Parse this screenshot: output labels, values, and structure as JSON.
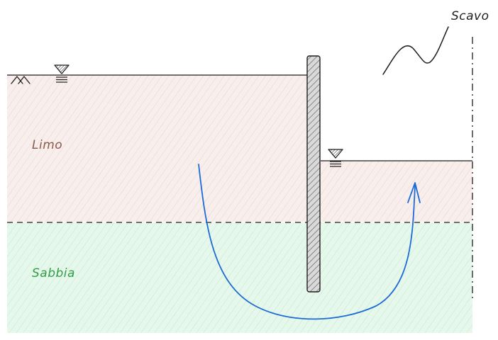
{
  "labels": {
    "upper_layer": "Limo",
    "lower_layer": "Sabbia",
    "excavation": "Scavo"
  },
  "colors": {
    "upper_layer_fill": "#f8eeec",
    "upper_layer_hatch": "#e6d3cf",
    "upper_layer_text": "#8a5a4c",
    "lower_layer_fill": "#e6f8ec",
    "lower_layer_hatch": "#bfe8cc",
    "lower_layer_text": "#2f9e44",
    "flow_line": "#1c6bd6",
    "wall_fill": "#d6d6d6",
    "stroke": "#1e1e1e"
  },
  "icons": {
    "water_table": "water-level-triangle-icon",
    "ground_surface": "ground-surface-symbol-icon",
    "flow": "seepage-flow-arrow-icon"
  }
}
